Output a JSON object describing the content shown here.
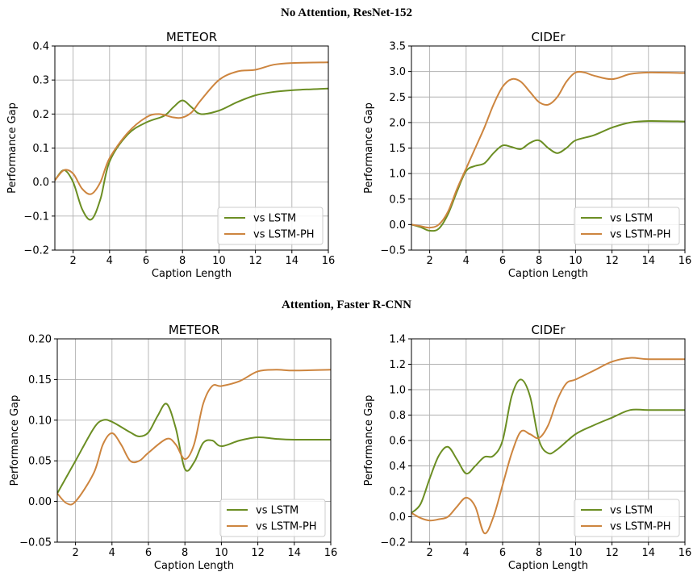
{
  "figure": {
    "row_titles": [
      "No Attention, ResNet-152",
      "Attention, Faster R-CNN"
    ]
  },
  "colors": {
    "lstm": "#6b8e23",
    "lstm_ph": "#cd853f",
    "grid": "#b0b0b0"
  },
  "chart_data": [
    {
      "type": "line",
      "title": "METEOR",
      "xlabel": "Caption Length",
      "ylabel": "Performance Gap",
      "xlim": [
        1,
        16
      ],
      "ylim": [
        -0.2,
        0.4
      ],
      "xticks": [
        2,
        4,
        6,
        8,
        10,
        12,
        14,
        16
      ],
      "yticks": [
        -0.2,
        -0.1,
        0.0,
        0.1,
        0.2,
        0.3,
        0.4
      ],
      "ytick_labels": [
        "−0.2",
        "−0.1",
        "0.0",
        "0.1",
        "0.2",
        "0.3",
        "0.4"
      ],
      "grid": true,
      "legend": "lower right",
      "series": [
        {
          "name": "vs LSTM",
          "color": "#6b8e23",
          "x": [
            1,
            1.5,
            2,
            2.5,
            3,
            3.5,
            4,
            5,
            6,
            7,
            7.5,
            8,
            8.5,
            9,
            10,
            11,
            12,
            13,
            14,
            16
          ],
          "y": [
            0.005,
            0.035,
            0.0,
            -0.08,
            -0.11,
            -0.05,
            0.06,
            0.14,
            0.175,
            0.195,
            0.22,
            0.24,
            0.22,
            0.2,
            0.21,
            0.235,
            0.255,
            0.265,
            0.27,
            0.275
          ]
        },
        {
          "name": "vs LSTM-PH",
          "color": "#cd853f",
          "x": [
            1,
            1.5,
            2,
            2.5,
            3,
            3.5,
            4,
            5,
            6,
            6.7,
            7.5,
            8,
            8.5,
            9,
            10,
            11,
            12,
            13,
            14,
            16
          ],
          "y": [
            0.005,
            0.035,
            0.025,
            -0.02,
            -0.035,
            0.0,
            0.07,
            0.145,
            0.19,
            0.2,
            0.19,
            0.19,
            0.205,
            0.24,
            0.3,
            0.325,
            0.33,
            0.345,
            0.35,
            0.352
          ]
        }
      ]
    },
    {
      "type": "line",
      "title": "CIDEr",
      "xlabel": "Caption Length",
      "ylabel": "Performance Gap",
      "xlim": [
        1,
        16
      ],
      "ylim": [
        -0.5,
        3.5
      ],
      "xticks": [
        2,
        4,
        6,
        8,
        10,
        12,
        14,
        16
      ],
      "yticks": [
        -0.5,
        0.0,
        0.5,
        1.0,
        1.5,
        2.0,
        2.5,
        3.0,
        3.5
      ],
      "ytick_labels": [
        "−0.5",
        "0.0",
        "0.5",
        "1.0",
        "1.5",
        "2.0",
        "2.5",
        "3.0",
        "3.5"
      ],
      "grid": true,
      "legend": "lower right",
      "series": [
        {
          "name": "vs LSTM",
          "color": "#6b8e23",
          "x": [
            1,
            1.5,
            2,
            2.5,
            3,
            3.5,
            4,
            4.5,
            5,
            5.5,
            6,
            6.5,
            7,
            7.5,
            8,
            8.5,
            9,
            9.5,
            10,
            11,
            12,
            13,
            14,
            16
          ],
          "y": [
            0.0,
            -0.05,
            -0.12,
            -0.08,
            0.2,
            0.65,
            1.05,
            1.15,
            1.2,
            1.4,
            1.55,
            1.52,
            1.48,
            1.6,
            1.65,
            1.5,
            1.4,
            1.5,
            1.65,
            1.75,
            1.9,
            2.0,
            2.03,
            2.02
          ]
        },
        {
          "name": "vs LSTM-PH",
          "color": "#cd853f",
          "x": [
            1,
            1.5,
            2,
            2.5,
            3,
            3.5,
            4,
            4.5,
            5,
            5.5,
            6,
            6.5,
            7,
            7.5,
            8,
            8.5,
            9,
            9.5,
            10,
            10.5,
            11,
            12,
            13,
            14,
            16
          ],
          "y": [
            0.0,
            -0.03,
            -0.06,
            0.0,
            0.25,
            0.7,
            1.1,
            1.5,
            1.9,
            2.35,
            2.7,
            2.85,
            2.8,
            2.6,
            2.4,
            2.35,
            2.5,
            2.8,
            2.98,
            2.98,
            2.92,
            2.85,
            2.95,
            2.98,
            2.97
          ]
        }
      ]
    },
    {
      "type": "line",
      "title": "METEOR",
      "xlabel": "Caption Length",
      "ylabel": "Performance Gap",
      "xlim": [
        1,
        16
      ],
      "ylim": [
        -0.05,
        0.2
      ],
      "xticks": [
        2,
        4,
        6,
        8,
        10,
        12,
        14,
        16
      ],
      "yticks": [
        -0.05,
        0.0,
        0.05,
        0.1,
        0.15,
        0.2
      ],
      "ytick_labels": [
        "−0.05",
        "0.00",
        "0.05",
        "0.10",
        "0.15",
        "0.20"
      ],
      "grid": true,
      "legend": "lower right",
      "series": [
        {
          "name": "vs LSTM",
          "color": "#6b8e23",
          "x": [
            1,
            2,
            3,
            3.5,
            4,
            5,
            5.5,
            6,
            6.5,
            7,
            7.5,
            8,
            8.5,
            9,
            9.5,
            10,
            11,
            12,
            13,
            14,
            16
          ],
          "y": [
            0.01,
            0.05,
            0.09,
            0.1,
            0.098,
            0.085,
            0.08,
            0.085,
            0.105,
            0.12,
            0.09,
            0.04,
            0.048,
            0.072,
            0.075,
            0.068,
            0.075,
            0.079,
            0.077,
            0.076,
            0.076
          ]
        },
        {
          "name": "vs LSTM-PH",
          "color": "#cd853f",
          "x": [
            1,
            1.5,
            2,
            3,
            3.5,
            4,
            4.5,
            5,
            5.5,
            6,
            7,
            7.5,
            8,
            8.5,
            9,
            9.5,
            10,
            11,
            12,
            13,
            14,
            16
          ],
          "y": [
            0.01,
            -0.002,
            0.0,
            0.035,
            0.07,
            0.084,
            0.07,
            0.05,
            0.05,
            0.06,
            0.077,
            0.07,
            0.052,
            0.07,
            0.12,
            0.142,
            0.142,
            0.148,
            0.16,
            0.162,
            0.161,
            0.162
          ]
        }
      ]
    },
    {
      "type": "line",
      "title": "CIDEr",
      "xlabel": "Caption Length",
      "ylabel": "Performance Gap",
      "xlim": [
        1,
        16
      ],
      "ylim": [
        -0.2,
        1.4
      ],
      "xticks": [
        2,
        4,
        6,
        8,
        10,
        12,
        14,
        16
      ],
      "yticks": [
        -0.2,
        0.0,
        0.2,
        0.4,
        0.6,
        0.8,
        1.0,
        1.2,
        1.4
      ],
      "ytick_labels": [
        "−0.2",
        "0.0",
        "0.2",
        "0.4",
        "0.6",
        "0.8",
        "1.0",
        "1.2",
        "1.4"
      ],
      "grid": true,
      "legend": "lower right",
      "series": [
        {
          "name": "vs LSTM",
          "color": "#6b8e23",
          "x": [
            1,
            1.5,
            2,
            2.5,
            3,
            3.5,
            4,
            4.5,
            5,
            5.5,
            6,
            6.5,
            7,
            7.5,
            8,
            8.5,
            9,
            10,
            11,
            12,
            13,
            14,
            16
          ],
          "y": [
            0.03,
            0.1,
            0.3,
            0.48,
            0.55,
            0.45,
            0.34,
            0.4,
            0.47,
            0.48,
            0.6,
            0.95,
            1.08,
            0.95,
            0.6,
            0.5,
            0.53,
            0.65,
            0.72,
            0.78,
            0.84,
            0.84,
            0.84
          ]
        },
        {
          "name": "vs LSTM-PH",
          "color": "#cd853f",
          "x": [
            1,
            1.5,
            2,
            2.5,
            3,
            3.5,
            4,
            4.5,
            5,
            5.5,
            6,
            6.5,
            7,
            7.5,
            8,
            8.5,
            9,
            9.5,
            10,
            11,
            12,
            13,
            14,
            16
          ],
          "y": [
            0.03,
            -0.01,
            -0.03,
            -0.02,
            0.0,
            0.08,
            0.15,
            0.08,
            -0.13,
            0.0,
            0.25,
            0.5,
            0.67,
            0.65,
            0.62,
            0.72,
            0.92,
            1.05,
            1.08,
            1.15,
            1.22,
            1.25,
            1.24,
            1.24
          ]
        }
      ]
    }
  ]
}
